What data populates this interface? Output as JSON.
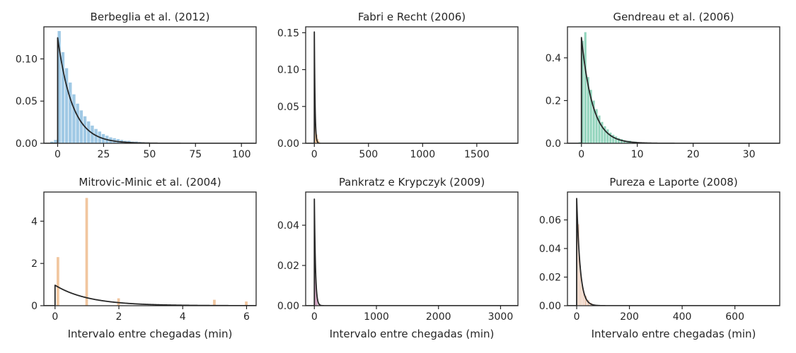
{
  "chart_data": [
    {
      "type": "histogram",
      "title": "Berbeglia et al. (2012)",
      "xlabel": "",
      "color": "#8fbfe0",
      "xlim": [
        -7.5,
        108
      ],
      "ylim": [
        0,
        0.138
      ],
      "xticks": [
        0,
        25,
        50,
        75,
        100
      ],
      "yticks": [
        0.0,
        0.05,
        0.1
      ],
      "ytick_labels": [
        "0.00",
        "0.05",
        "0.10"
      ],
      "bins": {
        "edges": [
          -4,
          -2,
          0,
          2,
          4,
          6,
          8,
          10,
          12,
          14,
          16,
          18,
          20,
          22,
          24,
          26,
          28,
          30,
          32,
          34,
          36,
          38,
          40,
          42,
          44,
          46,
          48,
          50,
          55,
          60,
          70,
          80,
          90,
          100
        ],
        "heights": [
          0.002,
          0.004,
          0.133,
          0.108,
          0.089,
          0.072,
          0.058,
          0.047,
          0.039,
          0.032,
          0.026,
          0.021,
          0.017,
          0.014,
          0.011,
          0.009,
          0.007,
          0.006,
          0.005,
          0.004,
          0.003,
          0.003,
          0.002,
          0.002,
          0.0015,
          0.0012,
          0.001,
          0.0008,
          0.0005,
          0.0003,
          0.0002,
          0.0001,
          0.0001
        ]
      },
      "fit": {
        "distribution": "exponential",
        "peak": 0.125,
        "scale": 8.0
      }
    },
    {
      "type": "histogram",
      "title": "Fabri e Recht (2006)",
      "xlabel": "",
      "color": "#f0b070",
      "xlim": [
        -80,
        1880
      ],
      "ylim": [
        0,
        0.158
      ],
      "xticks": [
        0,
        500,
        1000,
        1500
      ],
      "yticks": [
        0.0,
        0.05,
        0.1,
        0.15
      ],
      "ytick_labels": [
        "0.00",
        "0.05",
        "0.10",
        "0.15"
      ],
      "bins": {
        "edges": [
          0,
          10,
          20,
          30,
          40,
          50,
          60
        ],
        "heights": [
          0.024,
          0.026,
          0.012,
          0.006,
          0.003,
          0.001
        ]
      },
      "fit": {
        "distribution": "exponential",
        "peak": 0.151,
        "scale": 6.6
      }
    },
    {
      "type": "histogram",
      "title": "Gendreau et al. (2006)",
      "xlabel": "",
      "color": "#7fcdb0",
      "xlim": [
        -2.5,
        35.5
      ],
      "ylim": [
        0,
        0.545
      ],
      "xticks": [
        0,
        10,
        20,
        30
      ],
      "yticks": [
        0.0,
        0.2,
        0.4
      ],
      "ytick_labels": [
        "0.0",
        "0.2",
        "0.4"
      ],
      "bins": {
        "edges": [
          -0.5,
          0,
          0.5,
          1,
          1.5,
          2,
          2.5,
          3,
          3.5,
          4,
          4.5,
          5,
          5.5,
          6,
          6.5,
          7,
          7.5,
          8,
          9,
          10,
          12,
          14
        ],
        "heights": [
          0.005,
          0.48,
          0.52,
          0.31,
          0.25,
          0.2,
          0.16,
          0.13,
          0.1,
          0.08,
          0.065,
          0.05,
          0.04,
          0.032,
          0.025,
          0.02,
          0.015,
          0.012,
          0.008,
          0.004,
          0.002
        ]
      },
      "fit": {
        "distribution": "exponential",
        "peak": 0.495,
        "scale": 2.0
      }
    },
    {
      "type": "histogram",
      "title": "Mitrovic-Minic et al. (2004)",
      "xlabel": "Intervalo entre chegadas (min)",
      "color": "#eebc8e",
      "xlim": [
        -0.35,
        6.3
      ],
      "ylim": [
        0,
        5.38
      ],
      "xticks": [
        0,
        2,
        4,
        6
      ],
      "yticks": [
        0,
        2,
        4
      ],
      "ytick_labels": [
        "0",
        "2",
        "4"
      ],
      "bins": {
        "edges": [
          0.05,
          0.15,
          0.95,
          1.05,
          1.95,
          2.05,
          4.95,
          5.05,
          5.95,
          6.05
        ],
        "heights": [
          2.3,
          0,
          5.1,
          0,
          0.35,
          0,
          0.28,
          0,
          0.2
        ]
      },
      "fit": {
        "distribution": "exponential",
        "peak": 0.97,
        "scale": 1.05
      }
    },
    {
      "type": "histogram",
      "title": "Pankratz e Krypczyk (2009)",
      "xlabel": "Intervalo entre chegadas (min)",
      "color": "#d0a0c0",
      "xlim": [
        -140,
        3280
      ],
      "ylim": [
        0,
        0.0565
      ],
      "xticks": [
        0,
        1000,
        2000,
        3000
      ],
      "yticks": [
        0.0,
        0.02,
        0.04
      ],
      "ytick_labels": [
        "0.00",
        "0.02",
        "0.04"
      ],
      "bins": {
        "edges": [
          0,
          10,
          20,
          30,
          40,
          60,
          80
        ],
        "heights": [
          0.012,
          0.015,
          0.009,
          0.006,
          0.003,
          0.001
        ]
      },
      "fit": {
        "distribution": "exponential",
        "peak": 0.053,
        "scale": 18.0
      }
    },
    {
      "type": "histogram",
      "title": "Pureza e Laporte (2008)",
      "xlabel": "Intervalo entre chegadas (min)",
      "color": "#e8c0a8",
      "xlim": [
        -35,
        770
      ],
      "ylim": [
        0,
        0.0795
      ],
      "xticks": [
        0,
        200,
        400,
        600
      ],
      "yticks": [
        0.0,
        0.02,
        0.04,
        0.06
      ],
      "ytick_labels": [
        "0.00",
        "0.02",
        "0.04",
        "0.06"
      ],
      "bins": {
        "edges": [
          0,
          6,
          12,
          18,
          24,
          30,
          40,
          50,
          60
        ],
        "heights": [
          0.05,
          0.057,
          0.028,
          0.017,
          0.011,
          0.007,
          0.004,
          0.002
        ]
      },
      "fit": {
        "distribution": "exponential",
        "peak": 0.075,
        "scale": 13.0
      }
    }
  ]
}
